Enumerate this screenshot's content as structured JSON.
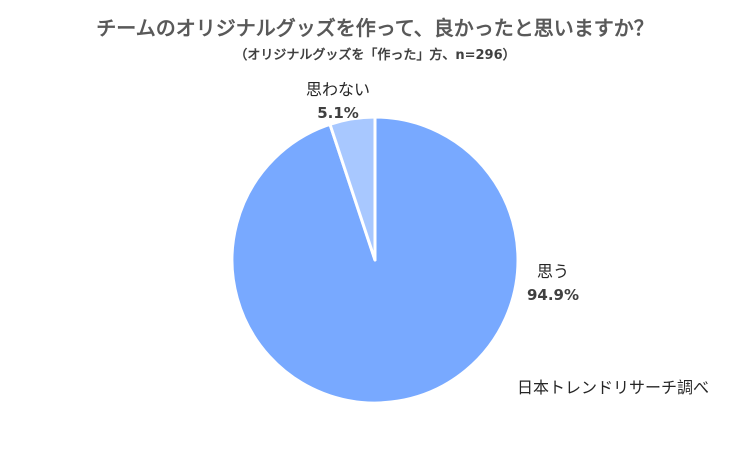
{
  "chart_data": {
    "type": "pie",
    "title": "チームのオリジナルグッズを作って、良かったと思いますか？",
    "subtitle": "（オリジナルグッズを「作った」方、n=296）",
    "slices": [
      {
        "label": "思う",
        "value": 94.9,
        "value_label": "94.9%",
        "color": "#78A9FF"
      },
      {
        "label": "思わない",
        "value": 5.1,
        "value_label": "5.1%",
        "color": "#A8C8FF"
      }
    ],
    "source": "日本トレンドリサーチ調べ"
  }
}
